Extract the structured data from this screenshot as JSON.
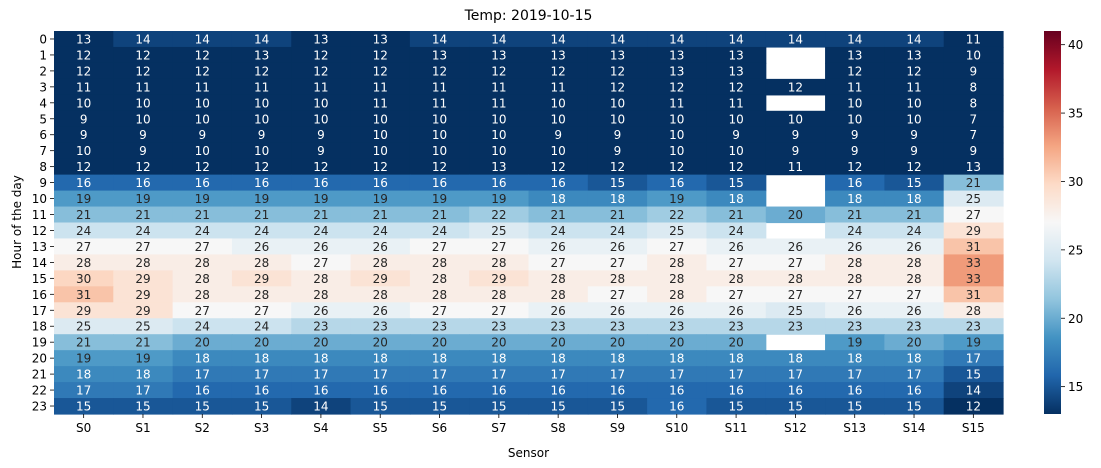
{
  "chart_data": {
    "type": "heatmap",
    "title": "Temp: 2019-10-15",
    "xlabel": "Sensor",
    "ylabel": "Hour of the day",
    "x_categories": [
      "S0",
      "S1",
      "S2",
      "S3",
      "S4",
      "S5",
      "S6",
      "S7",
      "S8",
      "S9",
      "S10",
      "S11",
      "S12",
      "S13",
      "S14",
      "S15"
    ],
    "y_categories": [
      "0",
      "1",
      "2",
      "3",
      "4",
      "5",
      "6",
      "7",
      "8",
      "9",
      "10",
      "11",
      "12",
      "13",
      "14",
      "15",
      "16",
      "17",
      "18",
      "19",
      "20",
      "21",
      "22",
      "23"
    ],
    "values": [
      [
        13,
        14,
        14,
        14,
        13,
        13,
        14,
        14,
        14,
        14,
        14,
        14,
        14,
        14,
        14,
        11
      ],
      [
        12,
        12,
        12,
        13,
        12,
        12,
        13,
        13,
        13,
        13,
        13,
        13,
        null,
        13,
        13,
        10
      ],
      [
        12,
        12,
        12,
        12,
        12,
        12,
        12,
        12,
        12,
        12,
        13,
        13,
        null,
        12,
        12,
        9
      ],
      [
        11,
        11,
        11,
        11,
        11,
        11,
        11,
        11,
        11,
        12,
        12,
        12,
        12,
        11,
        11,
        8
      ],
      [
        10,
        10,
        10,
        10,
        10,
        11,
        11,
        11,
        10,
        10,
        11,
        11,
        null,
        10,
        10,
        8
      ],
      [
        9,
        10,
        10,
        10,
        10,
        10,
        10,
        10,
        10,
        10,
        10,
        10,
        10,
        10,
        10,
        7
      ],
      [
        9,
        9,
        9,
        9,
        9,
        10,
        10,
        10,
        9,
        9,
        10,
        9,
        9,
        9,
        9,
        7
      ],
      [
        10,
        9,
        10,
        10,
        9,
        10,
        10,
        10,
        10,
        9,
        10,
        10,
        9,
        9,
        9,
        9
      ],
      [
        12,
        12,
        12,
        12,
        12,
        12,
        12,
        13,
        12,
        12,
        12,
        12,
        11,
        12,
        12,
        13
      ],
      [
        16,
        16,
        16,
        16,
        16,
        16,
        16,
        16,
        16,
        15,
        16,
        15,
        null,
        16,
        15,
        21
      ],
      [
        19,
        19,
        19,
        19,
        19,
        19,
        19,
        19,
        18,
        18,
        19,
        18,
        null,
        18,
        18,
        25
      ],
      [
        21,
        21,
        21,
        21,
        21,
        21,
        21,
        22,
        21,
        21,
        22,
        21,
        20,
        21,
        21,
        27
      ],
      [
        24,
        24,
        24,
        24,
        24,
        24,
        24,
        25,
        24,
        24,
        25,
        24,
        null,
        24,
        24,
        29
      ],
      [
        27,
        27,
        27,
        26,
        26,
        26,
        27,
        27,
        26,
        26,
        27,
        26,
        26,
        26,
        26,
        31
      ],
      [
        28,
        28,
        28,
        28,
        27,
        28,
        28,
        28,
        27,
        27,
        28,
        27,
        27,
        28,
        28,
        33
      ],
      [
        30,
        29,
        28,
        29,
        28,
        29,
        28,
        29,
        28,
        28,
        28,
        28,
        28,
        28,
        28,
        33
      ],
      [
        31,
        29,
        28,
        28,
        28,
        28,
        28,
        28,
        28,
        27,
        28,
        27,
        27,
        27,
        27,
        31
      ],
      [
        29,
        29,
        27,
        27,
        26,
        26,
        27,
        27,
        26,
        26,
        26,
        26,
        25,
        26,
        26,
        28
      ],
      [
        25,
        25,
        24,
        24,
        23,
        23,
        23,
        23,
        23,
        23,
        23,
        23,
        23,
        23,
        23,
        23
      ],
      [
        21,
        21,
        20,
        20,
        20,
        20,
        20,
        20,
        20,
        20,
        20,
        20,
        null,
        19,
        20,
        19
      ],
      [
        19,
        19,
        18,
        18,
        18,
        18,
        18,
        18,
        18,
        18,
        18,
        18,
        18,
        18,
        18,
        17
      ],
      [
        18,
        18,
        17,
        17,
        17,
        17,
        17,
        17,
        17,
        17,
        17,
        17,
        17,
        17,
        17,
        15
      ],
      [
        17,
        17,
        16,
        16,
        16,
        16,
        16,
        16,
        16,
        16,
        16,
        16,
        16,
        16,
        16,
        14
      ],
      [
        15,
        15,
        15,
        15,
        14,
        15,
        15,
        15,
        15,
        15,
        16,
        15,
        15,
        15,
        15,
        12
      ]
    ],
    "colormap": "RdBu_r",
    "vmin": 13,
    "vmax": 41,
    "colorbar_ticks": [
      15,
      20,
      25,
      30,
      35,
      40
    ],
    "annotated": true,
    "grid": false
  }
}
